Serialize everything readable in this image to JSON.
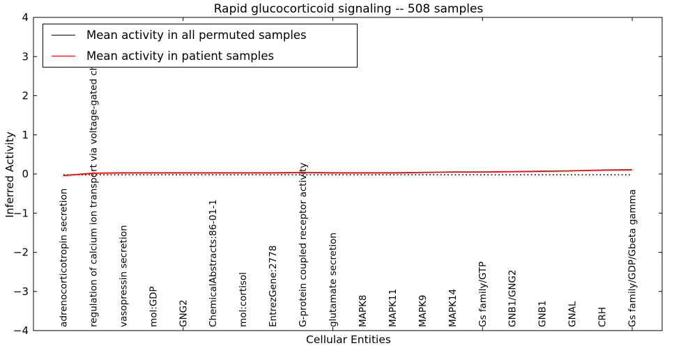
{
  "chart_data": {
    "type": "line",
    "title": "Rapid glucocorticoid signaling -- 508 samples",
    "xlabel": "Cellular Entities",
    "ylabel": "Inferred Activity",
    "ylim": [
      -4,
      4
    ],
    "yticks": [
      -4,
      -3,
      -2,
      -1,
      0,
      1,
      2,
      3,
      4
    ],
    "xlim": [
      0,
      21
    ],
    "xtick_values": [
      5,
      10,
      15,
      20
    ],
    "grid": false,
    "legend_position": "upper left",
    "categories": [
      "adrenocorticotropin secretion",
      "regulation of calcium ion transport via voltage-gated channels",
      "vasopressin secretion",
      "mol:GDP",
      "GNG2",
      "ChemicalAbstracts:86-01-1",
      "mol:cortisol",
      "EntrezGene:2778",
      "G-protein coupled receptor activity",
      "glutamate secretion",
      "MAPK8",
      "MAPK11",
      "MAPK9",
      "MAPK14",
      "Gs family/GTP",
      "GNB1/GNG2",
      "GNB1",
      "GNAL",
      "CRH",
      "Gs family/GDP/Gbeta gamma"
    ],
    "series": [
      {
        "name": "Mean activity in all permuted samples",
        "color": "#000000",
        "line_style": "dotted",
        "values": [
          -0.02,
          -0.02,
          -0.02,
          -0.02,
          -0.02,
          -0.02,
          -0.02,
          -0.02,
          -0.02,
          -0.02,
          -0.02,
          -0.02,
          -0.02,
          -0.02,
          -0.02,
          -0.02,
          -0.02,
          -0.02,
          -0.02,
          -0.02
        ]
      },
      {
        "name": "Mean activity in patient samples",
        "color": "#ff0000",
        "line_style": "solid",
        "values": [
          -0.04,
          0.02,
          0.03,
          0.03,
          0.03,
          0.03,
          0.03,
          0.03,
          0.04,
          0.03,
          0.03,
          0.03,
          0.04,
          0.05,
          0.05,
          0.06,
          0.07,
          0.08,
          0.1,
          0.11
        ]
      }
    ],
    "legend": [
      {
        "label": "Mean activity in all permuted samples",
        "color": "#000000"
      },
      {
        "label": "Mean activity in patient samples",
        "color": "#ff0000"
      }
    ]
  }
}
